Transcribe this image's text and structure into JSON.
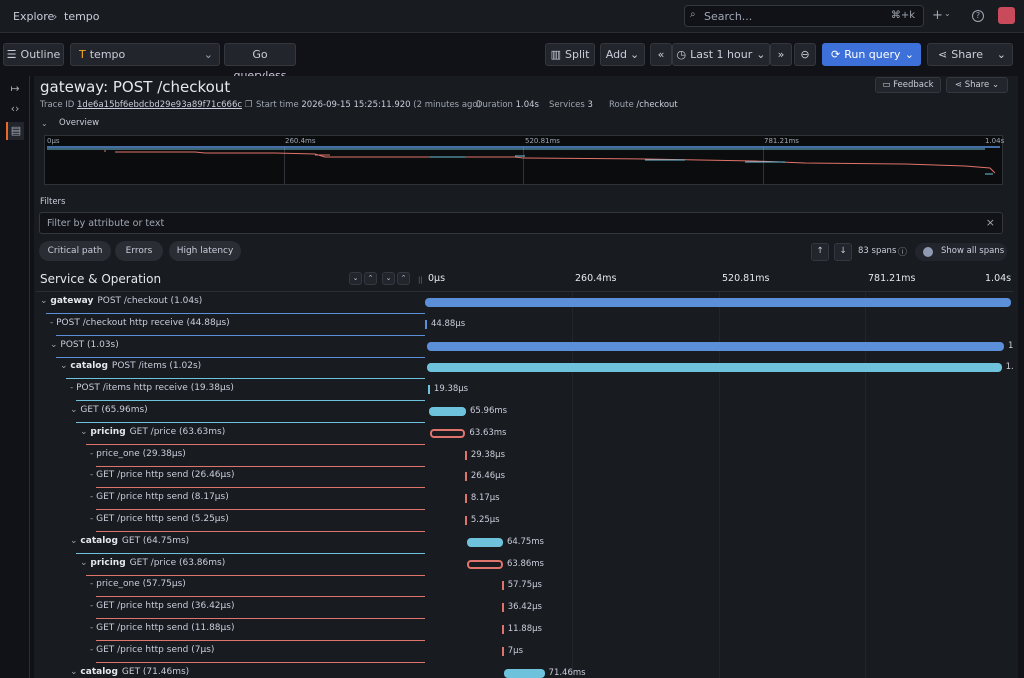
{
  "topbar": {
    "crumb_explore": "Explore",
    "crumb_sep": "›",
    "crumb_tempo": "tempo",
    "search_placeholder": "Search...",
    "search_shortcut": "⌘+k",
    "plus": "+",
    "help": "?"
  },
  "toolbar": {
    "outline": "Outline",
    "datasource": "tempo",
    "go_queryless": "Go queryless",
    "split": "Split",
    "add": "Add",
    "time_range": "Last 1 hour",
    "run_query": "Run query",
    "share": "Share"
  },
  "trace": {
    "title": "gateway: POST /checkout",
    "trace_id_label": "Trace ID",
    "trace_id": "1de6a15bf6ebdcbd29e93a89f71c666c",
    "start_label": "Start time",
    "start_time": "2026-09-15 15:25:11.920",
    "start_rel": "(2 minutes ago)",
    "duration_label": "Duration",
    "duration": "1.04s",
    "services_label": "Services",
    "services": "3",
    "route_label": "Route",
    "route": "/checkout",
    "feedback": "Feedback",
    "share": "Share",
    "overview_label": "Overview",
    "ticks": [
      "0μs",
      "260.4ms",
      "520.81ms",
      "781.21ms",
      "1.04s"
    ]
  },
  "filters": {
    "label": "Filters",
    "placeholder": "Filter by attribute or text",
    "chips": [
      "Critical path",
      "Errors",
      "High latency"
    ],
    "spans_count": "83 spans",
    "show_all": "Show all spans"
  },
  "table": {
    "header": "Service & Operation",
    "ticks": [
      "0μs",
      "260.4ms",
      "520.81ms",
      "781.21ms",
      "1.04s"
    ]
  },
  "colors": {
    "gateway": "#5b8fd9",
    "catalog": "#6fc2db",
    "pricing": "#e0736b"
  },
  "spans": [
    {
      "service": "gateway",
      "op": "POST /checkout (1.04s)",
      "depth": 0,
      "caret": "⌄",
      "start": 0,
      "dur": 1.0,
      "label": "",
      "color": "gateway"
    },
    {
      "service": "",
      "op": "POST /checkout http receive (44.88μs)",
      "depth": 1,
      "caret": "-",
      "start": 0,
      "dur": 0,
      "label": "44.88μs",
      "color": "gateway"
    },
    {
      "service": "",
      "op": "POST (1.03s)",
      "depth": 1,
      "caret": "⌄",
      "start": 0.003,
      "dur": 0.985,
      "label": "1",
      "color": "gateway"
    },
    {
      "service": "catalog",
      "op": "POST /items (1.02s)",
      "depth": 2,
      "caret": "⌄",
      "start": 0.004,
      "dur": 0.98,
      "label": "1.",
      "color": "catalog"
    },
    {
      "service": "",
      "op": "POST /items http receive (19.38μs)",
      "depth": 3,
      "caret": "-",
      "start": 0.005,
      "dur": 0,
      "label": "19.38μs",
      "color": "catalog"
    },
    {
      "service": "",
      "op": "GET (65.96ms)",
      "depth": 3,
      "caret": "⌄",
      "start": 0.007,
      "dur": 0.063,
      "label": "65.96ms",
      "color": "catalog"
    },
    {
      "service": "pricing",
      "op": "GET /price (63.63ms)",
      "depth": 4,
      "caret": "⌄",
      "start": 0.008,
      "dur": 0.061,
      "label": "63.63ms",
      "color": "pricing"
    },
    {
      "service": "",
      "op": "price_one (29.38μs)",
      "depth": 5,
      "caret": "-",
      "start": 0.068,
      "dur": 0,
      "label": "29.38μs",
      "color": "pricing"
    },
    {
      "service": "",
      "op": "GET /price http send (26.46μs)",
      "depth": 5,
      "caret": "-",
      "start": 0.068,
      "dur": 0,
      "label": "26.46μs",
      "color": "pricing"
    },
    {
      "service": "",
      "op": "GET /price http send (8.17μs)",
      "depth": 5,
      "caret": "-",
      "start": 0.068,
      "dur": 0,
      "label": "8.17μs",
      "color": "pricing"
    },
    {
      "service": "",
      "op": "GET /price http send (5.25μs)",
      "depth": 5,
      "caret": "-",
      "start": 0.068,
      "dur": 0,
      "label": "5.25μs",
      "color": "pricing"
    },
    {
      "service": "catalog",
      "op": "GET (64.75ms)",
      "depth": 3,
      "caret": "⌄",
      "start": 0.071,
      "dur": 0.062,
      "label": "64.75ms",
      "color": "catalog"
    },
    {
      "service": "pricing",
      "op": "GET /price (63.86ms)",
      "depth": 4,
      "caret": "⌄",
      "start": 0.072,
      "dur": 0.061,
      "label": "63.86ms",
      "color": "pricing"
    },
    {
      "service": "",
      "op": "price_one (57.75μs)",
      "depth": 5,
      "caret": "-",
      "start": 0.131,
      "dur": 0,
      "label": "57.75μs",
      "color": "pricing"
    },
    {
      "service": "",
      "op": "GET /price http send (36.42μs)",
      "depth": 5,
      "caret": "-",
      "start": 0.131,
      "dur": 0,
      "label": "36.42μs",
      "color": "pricing"
    },
    {
      "service": "",
      "op": "GET /price http send (11.88μs)",
      "depth": 5,
      "caret": "-",
      "start": 0.131,
      "dur": 0,
      "label": "11.88μs",
      "color": "pricing"
    },
    {
      "service": "",
      "op": "GET /price http send (7μs)",
      "depth": 5,
      "caret": "-",
      "start": 0.131,
      "dur": 0,
      "label": "7μs",
      "color": "pricing"
    },
    {
      "service": "catalog",
      "op": "GET (71.46ms)",
      "depth": 3,
      "caret": "⌄",
      "start": 0.135,
      "dur": 0.069,
      "label": "71.46ms",
      "color": "catalog"
    }
  ]
}
